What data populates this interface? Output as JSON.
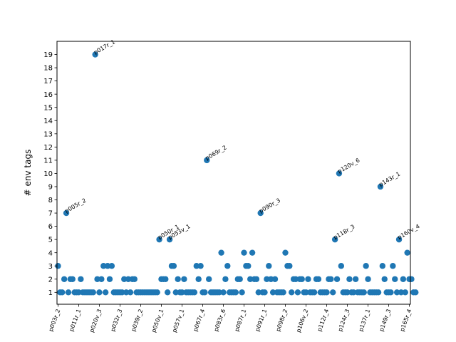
{
  "chart_data": {
    "type": "scatter",
    "title": "",
    "xlabel": "",
    "ylabel": "# env tags",
    "ylim": [
      0.1,
      20.0
    ],
    "yticks": [
      1,
      2,
      3,
      4,
      5,
      6,
      7,
      8,
      9,
      10,
      11,
      12,
      13,
      14,
      15,
      16,
      17,
      18,
      19
    ],
    "xlim": [
      -0.5,
      170.5
    ],
    "grid": false,
    "legend": "none",
    "colors": {
      "point": "#1f77b4",
      "axis": "#000000",
      "background": "#ffffff"
    },
    "x_ticks": [
      {
        "pos": 0,
        "label": "p003r_2"
      },
      {
        "pos": 10,
        "label": "p011r_1"
      },
      {
        "pos": 20,
        "label": "p020v_3"
      },
      {
        "pos": 30,
        "label": "p032r_3"
      },
      {
        "pos": 40,
        "label": "p039r_2"
      },
      {
        "pos": 50,
        "label": "p050v_1"
      },
      {
        "pos": 60,
        "label": "p057v_1"
      },
      {
        "pos": 70,
        "label": "p067r_4"
      },
      {
        "pos": 80,
        "label": "p083r_6"
      },
      {
        "pos": 90,
        "label": "p087r_1"
      },
      {
        "pos": 100,
        "label": "p091r_1"
      },
      {
        "pos": 110,
        "label": "p098r_2"
      },
      {
        "pos": 120,
        "label": "p106v_2"
      },
      {
        "pos": 130,
        "label": "p112r_4"
      },
      {
        "pos": 140,
        "label": "p124r_3"
      },
      {
        "pos": 150,
        "label": "p137r_1"
      },
      {
        "pos": 160,
        "label": "p149r_3"
      },
      {
        "pos": 170,
        "label": "p165r_4"
      }
    ],
    "annotations": [
      {
        "x": 4,
        "y": 7,
        "label": "p005r_2"
      },
      {
        "x": 18,
        "y": 19,
        "label": "p017r_1"
      },
      {
        "x": 49,
        "y": 5,
        "label": "p050r_1"
      },
      {
        "x": 54,
        "y": 5,
        "label": "p053v_1"
      },
      {
        "x": 72,
        "y": 11,
        "label": "p069r_2"
      },
      {
        "x": 98,
        "y": 7,
        "label": "p090r_3"
      },
      {
        "x": 134,
        "y": 5,
        "label": "p118r_3"
      },
      {
        "x": 136,
        "y": 10,
        "label": "p120v_6"
      },
      {
        "x": 156,
        "y": 9,
        "label": "p143r_1"
      },
      {
        "x": 165,
        "y": 5,
        "label": "p160v_4"
      }
    ],
    "points": [
      [
        0,
        3
      ],
      [
        1,
        1
      ],
      [
        2,
        1
      ],
      [
        3,
        2
      ],
      [
        4,
        7
      ],
      [
        5,
        1
      ],
      [
        6,
        2
      ],
      [
        7,
        2
      ],
      [
        8,
        1
      ],
      [
        9,
        1
      ],
      [
        10,
        1
      ],
      [
        11,
        2
      ],
      [
        12,
        1
      ],
      [
        13,
        1
      ],
      [
        14,
        1
      ],
      [
        15,
        1
      ],
      [
        16,
        1
      ],
      [
        17,
        1
      ],
      [
        18,
        19
      ],
      [
        19,
        2
      ],
      [
        20,
        1
      ],
      [
        21,
        2
      ],
      [
        22,
        3
      ],
      [
        23,
        1
      ],
      [
        24,
        3
      ],
      [
        25,
        2
      ],
      [
        26,
        3
      ],
      [
        27,
        1
      ],
      [
        28,
        1
      ],
      [
        29,
        1
      ],
      [
        30,
        1
      ],
      [
        31,
        1
      ],
      [
        32,
        2
      ],
      [
        33,
        1
      ],
      [
        34,
        2
      ],
      [
        35,
        1
      ],
      [
        36,
        2
      ],
      [
        37,
        2
      ],
      [
        38,
        1
      ],
      [
        39,
        1
      ],
      [
        40,
        1
      ],
      [
        41,
        1
      ],
      [
        42,
        1
      ],
      [
        43,
        1
      ],
      [
        44,
        1
      ],
      [
        45,
        1
      ],
      [
        46,
        1
      ],
      [
        47,
        1
      ],
      [
        48,
        1
      ],
      [
        49,
        5
      ],
      [
        50,
        2
      ],
      [
        51,
        2
      ],
      [
        52,
        2
      ],
      [
        53,
        1
      ],
      [
        54,
        5
      ],
      [
        55,
        3
      ],
      [
        56,
        3
      ],
      [
        57,
        1
      ],
      [
        58,
        2
      ],
      [
        59,
        1
      ],
      [
        60,
        1
      ],
      [
        61,
        2
      ],
      [
        62,
        1
      ],
      [
        63,
        1
      ],
      [
        64,
        1
      ],
      [
        65,
        1
      ],
      [
        66,
        1
      ],
      [
        67,
        3
      ],
      [
        68,
        2
      ],
      [
        69,
        3
      ],
      [
        70,
        1
      ],
      [
        71,
        1
      ],
      [
        72,
        11
      ],
      [
        73,
        2
      ],
      [
        74,
        1
      ],
      [
        75,
        1
      ],
      [
        76,
        1
      ],
      [
        77,
        1
      ],
      [
        78,
        1
      ],
      [
        79,
        4
      ],
      [
        80,
        1
      ],
      [
        81,
        2
      ],
      [
        82,
        3
      ],
      [
        83,
        1
      ],
      [
        84,
        1
      ],
      [
        85,
        1
      ],
      [
        86,
        1
      ],
      [
        87,
        2
      ],
      [
        88,
        2
      ],
      [
        89,
        1
      ],
      [
        90,
        4
      ],
      [
        91,
        3
      ],
      [
        92,
        3
      ],
      [
        93,
        2
      ],
      [
        94,
        4
      ],
      [
        95,
        2
      ],
      [
        96,
        2
      ],
      [
        97,
        1
      ],
      [
        98,
        7
      ],
      [
        99,
        1
      ],
      [
        100,
        1
      ],
      [
        101,
        2
      ],
      [
        102,
        3
      ],
      [
        103,
        2
      ],
      [
        104,
        1
      ],
      [
        105,
        2
      ],
      [
        106,
        1
      ],
      [
        107,
        1
      ],
      [
        108,
        1
      ],
      [
        109,
        1
      ],
      [
        110,
        4
      ],
      [
        111,
        3
      ],
      [
        112,
        3
      ],
      [
        113,
        1
      ],
      [
        114,
        2
      ],
      [
        115,
        2
      ],
      [
        116,
        1
      ],
      [
        117,
        2
      ],
      [
        118,
        2
      ],
      [
        119,
        1
      ],
      [
        120,
        1
      ],
      [
        121,
        2
      ],
      [
        122,
        1
      ],
      [
        123,
        1
      ],
      [
        124,
        1
      ],
      [
        125,
        2
      ],
      [
        126,
        2
      ],
      [
        127,
        1
      ],
      [
        128,
        1
      ],
      [
        129,
        1
      ],
      [
        130,
        1
      ],
      [
        131,
        2
      ],
      [
        132,
        2
      ],
      [
        133,
        1
      ],
      [
        134,
        5
      ],
      [
        135,
        2
      ],
      [
        136,
        10
      ],
      [
        137,
        3
      ],
      [
        138,
        1
      ],
      [
        139,
        1
      ],
      [
        140,
        1
      ],
      [
        141,
        2
      ],
      [
        142,
        1
      ],
      [
        143,
        1
      ],
      [
        144,
        2
      ],
      [
        145,
        1
      ],
      [
        146,
        1
      ],
      [
        147,
        1
      ],
      [
        148,
        1
      ],
      [
        149,
        3
      ],
      [
        150,
        2
      ],
      [
        151,
        1
      ],
      [
        152,
        1
      ],
      [
        153,
        1
      ],
      [
        154,
        1
      ],
      [
        155,
        1
      ],
      [
        156,
        9
      ],
      [
        157,
        3
      ],
      [
        158,
        2
      ],
      [
        159,
        1
      ],
      [
        160,
        1
      ],
      [
        161,
        1
      ],
      [
        162,
        3
      ],
      [
        163,
        2
      ],
      [
        164,
        1
      ],
      [
        165,
        5
      ],
      [
        166,
        1
      ],
      [
        167,
        2
      ],
      [
        168,
        1
      ],
      [
        169,
        4
      ],
      [
        170,
        2
      ],
      [
        171,
        2
      ],
      [
        172,
        1
      ],
      [
        173,
        1
      ]
    ]
  }
}
